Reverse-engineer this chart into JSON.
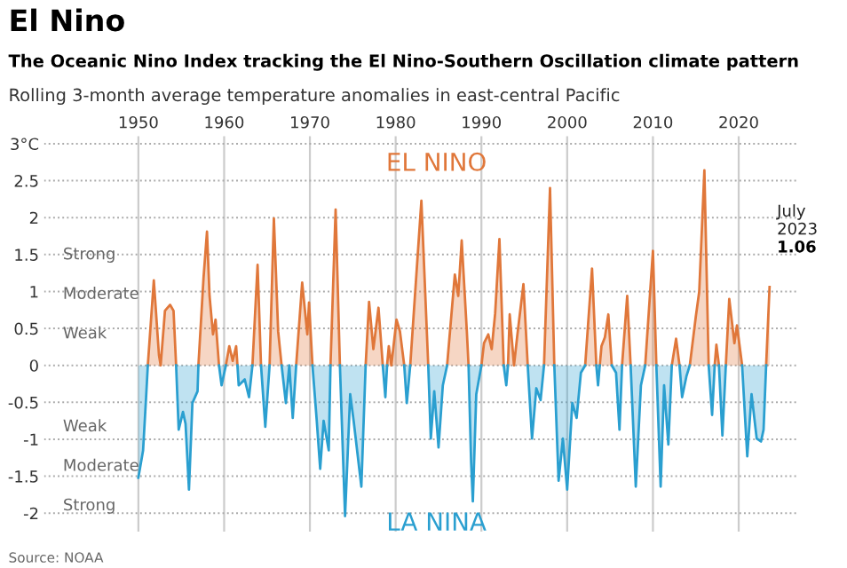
{
  "chart_data": {
    "type": "area",
    "title": "El Nino",
    "subtitle": "The Oceanic Nino Index tracking the El Nino-Southern Oscillation climate pattern",
    "ylabel": "Rolling 3-month average temperature anomalies in east-central Pacific",
    "x": [
      1950.0,
      1950.55,
      1950.9,
      1951.1,
      1951.8,
      1952.4,
      1952.6,
      1953.1,
      1953.7,
      1954.1,
      1954.4,
      1954.7,
      1955.2,
      1955.5,
      1955.9,
      1956.3,
      1956.9,
      1957.0,
      1957.6,
      1958.0,
      1958.3,
      1958.7,
      1959.0,
      1959.4,
      1959.7,
      1960.2,
      1960.6,
      1961.0,
      1961.4,
      1961.55,
      1961.7,
      1962.4,
      1962.9,
      1963.3,
      1963.9,
      1964.3,
      1964.8,
      1965.3,
      1965.8,
      1966.3,
      1966.7,
      1967.2,
      1967.6,
      1968.0,
      1968.4,
      1969.1,
      1969.7,
      1969.9,
      1970.3,
      1970.8,
      1971.2,
      1971.6,
      1972.2,
      1972.4,
      1973.0,
      1973.5,
      1974.1,
      1974.7,
      1975.1,
      1976.0,
      1976.5,
      1976.9,
      1977.4,
      1978.0,
      1978.5,
      1978.8,
      1979.0,
      1979.2,
      1979.5,
      1980.1,
      1980.5,
      1981.0,
      1981.3,
      1981.7,
      1983.0,
      1983.8,
      1984.1,
      1984.5,
      1985.0,
      1985.5,
      1986.0,
      1986.9,
      1987.3,
      1987.7,
      1988.3,
      1988.5,
      1988.8,
      1989.0,
      1989.4,
      1990.0,
      1990.3,
      1990.8,
      1991.2,
      1991.6,
      1992.1,
      1992.6,
      1992.9,
      1993.1,
      1993.3,
      1993.8,
      1994.2,
      1994.9,
      1995.4,
      1995.9,
      1996.4,
      1996.9,
      1997.3,
      1998.0,
      1998.5,
      1999.0,
      1999.5,
      2000.0,
      2000.6,
      2001.1,
      2001.6,
      2002.1,
      2002.9,
      2003.4,
      2003.6,
      2003.8,
      2004.0,
      2004.4,
      2004.8,
      2005.2,
      2005.7,
      2006.1,
      2006.4,
      2007.0,
      2007.4,
      2008.0,
      2008.6,
      2009.1,
      2010.0,
      2010.4,
      2010.9,
      2011.3,
      2011.8,
      2012.2,
      2012.7,
      2013.1,
      2013.4,
      2013.9,
      2014.3,
      2015.0,
      2015.4,
      2016.0,
      2016.5,
      2016.9,
      2017.2,
      2017.4,
      2017.7,
      2018.1,
      2018.5,
      2018.9,
      2019.5,
      2019.8,
      2020.4,
      2021.0,
      2021.5,
      2022.1,
      2022.6,
      2022.9,
      2023.2,
      2023.6
    ],
    "series": [
      {
        "name": "EL NINO",
        "color": "#e0773a",
        "values": [
          null,
          null,
          null,
          0,
          1.15,
          0.14,
          0,
          0.74,
          0.82,
          0.74,
          0,
          null,
          null,
          null,
          null,
          null,
          null,
          0,
          1.19,
          1.81,
          0.94,
          0.42,
          0.62,
          0,
          null,
          0,
          0.26,
          0.06,
          0.26,
          0,
          null,
          null,
          null,
          0,
          1.36,
          0,
          null,
          0,
          1.99,
          0.46,
          0,
          null,
          null,
          null,
          0,
          1.12,
          0.42,
          0.85,
          0,
          null,
          null,
          null,
          null,
          0,
          2.11,
          0,
          null,
          null,
          null,
          null,
          0,
          0.86,
          0.22,
          0.78,
          0,
          null,
          0,
          0.26,
          0,
          0.62,
          0.46,
          0,
          null,
          0,
          2.23,
          0,
          null,
          null,
          null,
          null,
          0,
          1.23,
          0.94,
          1.69,
          0.46,
          0,
          null,
          null,
          null,
          0,
          0.3,
          0.42,
          0.22,
          0.7,
          1.71,
          0,
          null,
          0,
          0.69,
          0,
          0.42,
          1.1,
          0,
          null,
          null,
          null,
          0,
          2.4,
          0,
          null,
          null,
          null,
          null,
          null,
          null,
          0,
          1.31,
          0,
          null,
          0,
          0.26,
          0.38,
          0.69,
          0,
          null,
          null,
          0,
          0.94,
          0,
          null,
          null,
          0,
          1.55,
          0,
          null,
          null,
          null,
          0,
          0.36,
          0,
          null,
          null,
          0,
          0.66,
          1.0,
          2.64,
          0,
          null,
          0,
          0.28,
          0,
          null,
          0,
          0.9,
          0.3,
          0.54,
          0,
          null,
          null,
          null,
          null,
          null,
          0,
          1.06
        ]
      },
      {
        "name": "LA NINA",
        "color": "#2a9fd0",
        "values": [
          -1.52,
          -1.15,
          -0.43,
          0,
          null,
          null,
          null,
          null,
          null,
          null,
          0,
          -0.87,
          -0.63,
          -0.79,
          -1.68,
          -0.51,
          -0.35,
          0,
          null,
          null,
          null,
          null,
          null,
          0,
          -0.27,
          0,
          null,
          null,
          null,
          0,
          -0.27,
          -0.19,
          -0.43,
          0,
          null,
          0,
          -0.83,
          0,
          null,
          null,
          0,
          -0.51,
          0,
          -0.71,
          0,
          null,
          null,
          null,
          0,
          -0.75,
          -1.4,
          -0.75,
          -1.15,
          0,
          null,
          0,
          -2.04,
          -0.39,
          -0.75,
          -1.64,
          0,
          null,
          null,
          null,
          0,
          -0.43,
          0,
          null,
          null,
          null,
          null,
          0,
          -0.51,
          0,
          null,
          0,
          -0.99,
          -0.35,
          -1.11,
          -0.27,
          0,
          null,
          null,
          null,
          null,
          0,
          -1.31,
          -1.84,
          -0.39,
          0,
          null,
          null,
          null,
          null,
          null,
          0,
          -0.27,
          0,
          null,
          null,
          null,
          null,
          0,
          -0.99,
          -0.31,
          -0.47,
          0,
          null,
          0,
          -1.56,
          -0.99,
          -1.68,
          -0.51,
          -0.71,
          -0.1,
          0,
          null,
          0,
          -0.27,
          0,
          null,
          null,
          null,
          0,
          -0.1,
          -0.87,
          0,
          null,
          0,
          -1.64,
          -0.27,
          0,
          null,
          0,
          -1.64,
          -0.27,
          -1.07,
          0,
          null,
          0,
          -0.43,
          -0.15,
          0,
          null,
          null,
          null,
          0,
          -0.67,
          0,
          null,
          0,
          -0.95,
          0,
          null,
          null,
          null,
          0,
          -1.23,
          -0.39,
          -0.99,
          -1.03,
          -0.87,
          0,
          null
        ]
      }
    ],
    "xlim": [
      1939,
      2027
    ],
    "xticks": [
      1950,
      1960,
      1970,
      1980,
      1990,
      2000,
      2010,
      2020
    ],
    "ylim": [
      -2.25,
      3.1
    ],
    "yticks": [
      {
        "value": 3,
        "label": "3°C"
      },
      2.5,
      2,
      1.5,
      1,
      0.5,
      0,
      -0.5,
      -1,
      -1.5,
      -2
    ],
    "grid": true,
    "annotations": [
      "Strong",
      "Moderate",
      "Weak",
      "Weak",
      "Moderate",
      "Strong",
      {
        "text": "July\n2023\n1.06",
        "x": 2023.6,
        "y": 1.06
      },
      "Source: NOAA"
    ]
  }
}
